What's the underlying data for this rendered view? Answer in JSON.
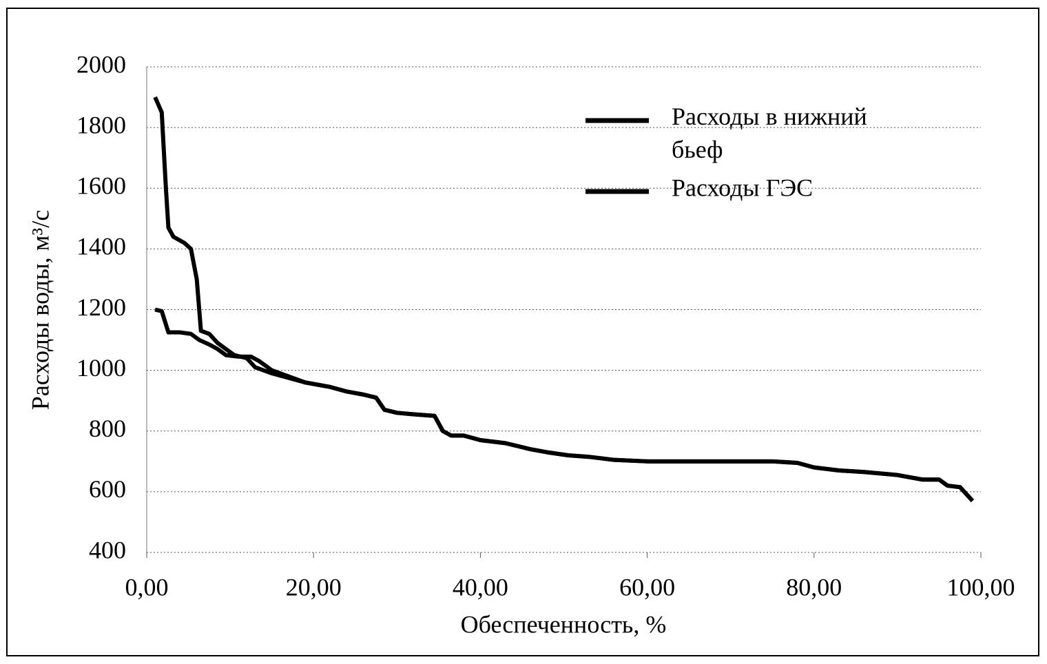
{
  "chart_data": {
    "type": "line",
    "xlabel": "Обеспеченность, %",
    "ylabel": "Расходы воды, м³/с",
    "xlim": [
      0,
      100
    ],
    "xticks": [
      {
        "value": 0,
        "label": "0,00"
      },
      {
        "value": 20,
        "label": "20,00"
      },
      {
        "value": 40,
        "label": "40,00"
      },
      {
        "value": 60,
        "label": "60,00"
      },
      {
        "value": 80,
        "label": "80,00"
      },
      {
        "value": 100,
        "label": "100,00"
      }
    ],
    "ylim": [
      400,
      2000
    ],
    "yticks": [
      400,
      600,
      800,
      1000,
      1200,
      1400,
      1600,
      1800,
      2000
    ],
    "grid": true,
    "legend": "upper right",
    "series": [
      {
        "name": "Расходы в нижний бьеф",
        "color": "#000000",
        "x": [
          1.0,
          1.8,
          2.3,
          2.6,
          3.2,
          4.5,
          5.3,
          6.0,
          6.5,
          7.5,
          8.5,
          9.5,
          10.5,
          12,
          13,
          15,
          17,
          19,
          22,
          24,
          26,
          27.5,
          28.5,
          30,
          32,
          34.5,
          35.5,
          36.5,
          38,
          40,
          43,
          46,
          48,
          50.5,
          53,
          56,
          60,
          65,
          70,
          75,
          78,
          80,
          83,
          86,
          90,
          93,
          95,
          96,
          97.5,
          99
        ],
        "values": [
          1900,
          1850,
          1600,
          1470,
          1440,
          1420,
          1400,
          1300,
          1130,
          1120,
          1090,
          1070,
          1050,
          1040,
          1010,
          990,
          975,
          960,
          945,
          930,
          920,
          910,
          870,
          860,
          855,
          850,
          800,
          785,
          785,
          770,
          760,
          740,
          730,
          720,
          715,
          705,
          700,
          700,
          700,
          700,
          695,
          680,
          670,
          665,
          655,
          640,
          640,
          620,
          615,
          570
        ]
      },
      {
        "name": "Расходы ГЭС",
        "color": "#000000",
        "x": [
          1.0,
          1.8,
          2.6,
          4,
          5.3,
          6.3,
          7.5,
          8.5,
          9.5,
          11,
          12.5,
          13.5,
          15,
          17,
          19,
          22,
          24,
          26,
          27.5,
          28.5,
          30,
          32,
          34.5,
          35.5,
          36.5,
          38,
          40,
          43,
          46,
          48,
          50.5,
          53,
          56,
          60,
          65,
          70,
          75,
          78,
          80,
          83,
          86,
          90,
          93,
          95,
          96,
          97.5,
          99
        ],
        "values": [
          1200,
          1195,
          1125,
          1125,
          1120,
          1100,
          1085,
          1070,
          1050,
          1045,
          1045,
          1030,
          1000,
          980,
          960,
          945,
          930,
          920,
          910,
          870,
          860,
          855,
          850,
          800,
          785,
          785,
          770,
          760,
          740,
          730,
          720,
          715,
          705,
          700,
          700,
          700,
          700,
          695,
          680,
          670,
          665,
          655,
          640,
          640,
          620,
          615,
          570
        ]
      }
    ]
  }
}
